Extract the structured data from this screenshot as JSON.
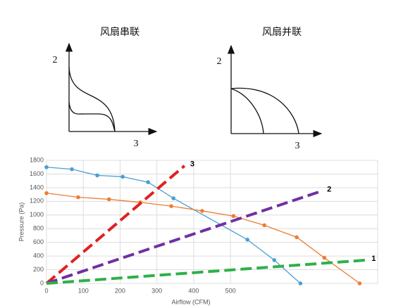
{
  "diagrams": [
    {
      "title": "风扇串联",
      "y_label": "2",
      "x_label": "3"
    },
    {
      "title": "风扇并联",
      "y_label": "2",
      "x_label": "3"
    }
  ],
  "chart_data": {
    "type": "line",
    "x_label": "Airflow (CFM)",
    "y_label": "Pressure (Pa)",
    "xlim": [
      0,
      900
    ],
    "xticks": [
      0,
      100,
      200,
      300,
      400,
      500
    ],
    "ylim": [
      0,
      1800
    ],
    "yticks": [
      0,
      200,
      400,
      600,
      800,
      1000,
      1200,
      1400,
      1600,
      1800
    ],
    "grid": true,
    "series": [
      {
        "color": "#4a9fd5",
        "dashed": false,
        "markers": true,
        "x": [
          0,
          69,
          138,
          207,
          276,
          345,
          546,
          619,
          690
        ],
        "values": [
          1700,
          1670,
          1580,
          1560,
          1480,
          1245,
          640,
          340,
          0
        ]
      },
      {
        "color": "#ed7d31",
        "dashed": false,
        "markers": true,
        "x": [
          0,
          86,
          170,
          255,
          339,
          423,
          508,
          592,
          680,
          755,
          851
        ],
        "values": [
          1320,
          1260,
          1230,
          1185,
          1130,
          1060,
          985,
          850,
          675,
          375,
          0
        ]
      },
      {
        "name": "3",
        "color": "#e02020",
        "dashed": true,
        "markers": false,
        "x": [
          0,
          375
        ],
        "values": [
          0,
          1720
        ]
      },
      {
        "name": "2",
        "color": "#7030a0",
        "dashed": true,
        "markers": false,
        "x": [
          0,
          747
        ],
        "values": [
          0,
          1350
        ]
      },
      {
        "name": "1",
        "color": "#2eb04a",
        "dashed": true,
        "markers": false,
        "x": [
          0,
          868
        ],
        "values": [
          0,
          340
        ]
      }
    ]
  }
}
